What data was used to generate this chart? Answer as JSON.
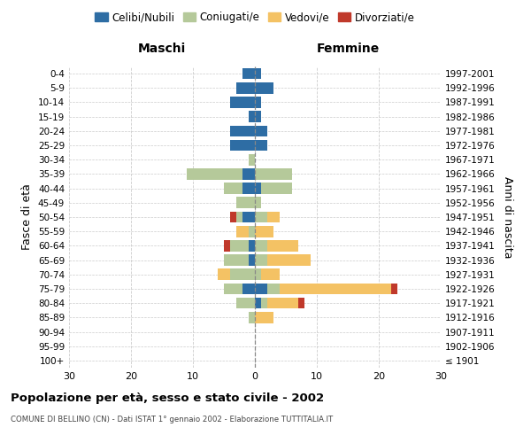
{
  "age_groups": [
    "100+",
    "95-99",
    "90-94",
    "85-89",
    "80-84",
    "75-79",
    "70-74",
    "65-69",
    "60-64",
    "55-59",
    "50-54",
    "45-49",
    "40-44",
    "35-39",
    "30-34",
    "25-29",
    "20-24",
    "15-19",
    "10-14",
    "5-9",
    "0-4"
  ],
  "birth_years": [
    "≤ 1901",
    "1902-1906",
    "1907-1911",
    "1912-1916",
    "1917-1921",
    "1922-1926",
    "1927-1931",
    "1932-1936",
    "1937-1941",
    "1942-1946",
    "1947-1951",
    "1952-1956",
    "1957-1961",
    "1962-1966",
    "1967-1971",
    "1972-1976",
    "1977-1981",
    "1982-1986",
    "1987-1991",
    "1992-1996",
    "1997-2001"
  ],
  "males_celibi": [
    0,
    0,
    0,
    0,
    0,
    2,
    0,
    1,
    1,
    0,
    2,
    0,
    2,
    2,
    0,
    4,
    4,
    1,
    4,
    3,
    2
  ],
  "males_coniugati": [
    0,
    0,
    0,
    1,
    3,
    3,
    4,
    4,
    3,
    1,
    1,
    3,
    3,
    9,
    1,
    0,
    0,
    0,
    0,
    0,
    0
  ],
  "males_vedovi": [
    0,
    0,
    0,
    0,
    0,
    0,
    2,
    0,
    0,
    2,
    0,
    0,
    0,
    0,
    0,
    0,
    0,
    0,
    0,
    0,
    0
  ],
  "males_divorziati": [
    0,
    0,
    0,
    0,
    0,
    0,
    0,
    0,
    1,
    0,
    1,
    0,
    0,
    0,
    0,
    0,
    0,
    0,
    0,
    0,
    0
  ],
  "females_nubili": [
    0,
    0,
    0,
    0,
    1,
    2,
    0,
    0,
    0,
    0,
    0,
    0,
    1,
    0,
    0,
    2,
    2,
    1,
    1,
    3,
    1
  ],
  "females_coniugate": [
    0,
    0,
    0,
    0,
    1,
    2,
    1,
    2,
    2,
    0,
    2,
    1,
    5,
    6,
    0,
    0,
    0,
    0,
    0,
    0,
    0
  ],
  "females_vedove": [
    0,
    0,
    0,
    3,
    5,
    18,
    3,
    7,
    5,
    3,
    2,
    0,
    0,
    0,
    0,
    0,
    0,
    0,
    0,
    0,
    0
  ],
  "females_divorziate": [
    0,
    0,
    0,
    0,
    1,
    1,
    0,
    0,
    0,
    0,
    0,
    0,
    0,
    0,
    0,
    0,
    0,
    0,
    0,
    0,
    0
  ],
  "color_celibi": "#2e6da4",
  "color_coniugati": "#b5c99a",
  "color_vedovi": "#f4c264",
  "color_divorziati": "#c0392b",
  "title": "Popolazione per età, sesso e stato civile - 2002",
  "subtitle": "COMUNE DI BELLINO (CN) - Dati ISTAT 1° gennaio 2002 - Elaborazione TUTTITALIA.IT",
  "label_maschi": "Maschi",
  "label_femmine": "Femmine",
  "ylabel_left": "Fasce di età",
  "ylabel_right": "Anni di nascita",
  "legend_labels": [
    "Celibi/Nubili",
    "Coniugati/e",
    "Vedovi/e",
    "Divorziati/e"
  ],
  "xlim": 30
}
